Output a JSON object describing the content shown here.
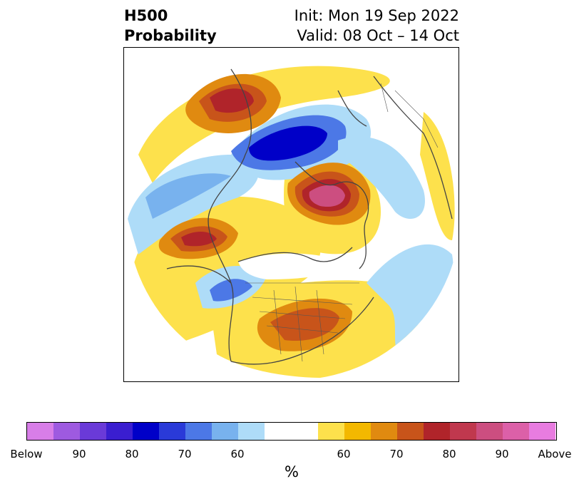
{
  "title": {
    "left_line1": "H500",
    "left_line2": "Probability",
    "right_line1": "Init: Mon 19 Sep 2022",
    "right_line2": "Valid: 08 Oct – 14 Oct"
  },
  "colorbar": {
    "units": "%",
    "tick_labels": [
      "Below",
      "90",
      "80",
      "70",
      "60",
      "60",
      "70",
      "80",
      "90",
      "Above"
    ],
    "below_colors": [
      "#d87ee8",
      "#9e5ae0",
      "#6a3ad8",
      "#3a1ed0",
      "#0000c8",
      "#2a3ad8",
      "#4c78e6",
      "#78b2ee",
      "#aedcf8"
    ],
    "neutral_color": "#ffffff",
    "above_colors": [
      "#fde14c",
      "#f3b800",
      "#e08a10",
      "#c8541a",
      "#b0242a",
      "#c0384e",
      "#cc4e80",
      "#dc60a8",
      "#e87ce0"
    ]
  },
  "map": {
    "projection": "north-polar-stereographic",
    "palette": {
      "y60": "#fde14c",
      "y70": "#f3b800",
      "o80": "#e08a10",
      "o90": "#c8541a",
      "r": "#b0242a",
      "m": "#c0384e",
      "p": "#cc4e80",
      "b60": "#aedcf8",
      "b70": "#78b2ee",
      "b80": "#4c78e6",
      "b90": "#2a3ad8",
      "bd": "#0000c8",
      "coast": "#444444"
    }
  }
}
